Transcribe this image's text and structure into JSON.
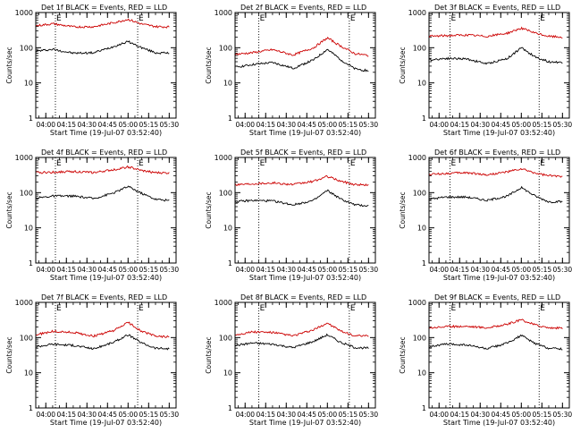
{
  "figure": {
    "ylabel": "Counts/sec",
    "xlabel_prefix": "Start Time",
    "start_time": "(19-Jul-07 03:52:40)",
    "xtick_labels": [
      "04:00",
      "04:15",
      "04:30",
      "04:45",
      "05:00",
      "05:15",
      "05:30"
    ],
    "ytick_labels": [
      "1",
      "10",
      "100",
      "1000"
    ],
    "colors": {
      "events": "#000000",
      "lld": "#cc0000"
    }
  },
  "chart_data": [
    {
      "type": "line",
      "title": "Det 1f BLACK = Events, RED = LLD",
      "marker_labels": [
        "E",
        "E"
      ],
      "markers_x": [
        "04:07",
        "05:07"
      ],
      "x_range": [
        "03:52:40",
        "05:35"
      ],
      "y_range": [
        1,
        1000
      ],
      "y_scale": "log",
      "series": [
        {
          "name": "Events",
          "color": "#000000",
          "x": [
            "03:53",
            "04:05",
            "04:20",
            "04:35",
            "04:50",
            "05:00",
            "05:10",
            "05:20",
            "05:30"
          ],
          "y": [
            80,
            90,
            70,
            72,
            110,
            150,
            100,
            72,
            70
          ]
        },
        {
          "name": "LLD",
          "color": "#cc0000",
          "x": [
            "03:53",
            "04:05",
            "04:20",
            "04:35",
            "04:50",
            "05:00",
            "05:10",
            "05:20",
            "05:30"
          ],
          "y": [
            420,
            480,
            390,
            395,
            520,
            640,
            470,
            400,
            390
          ]
        }
      ]
    },
    {
      "type": "line",
      "title": "Det 2f BLACK = Events, RED = LLD",
      "marker_labels": [
        "E",
        "E"
      ],
      "markers_x": [
        "04:10",
        "05:16"
      ],
      "x_range": [
        "03:52:40",
        "05:35"
      ],
      "y_range": [
        1,
        1000
      ],
      "y_scale": "log",
      "series": [
        {
          "name": "Events",
          "color": "#000000",
          "x": [
            "03:53",
            "04:05",
            "04:20",
            "04:35",
            "04:50",
            "05:00",
            "05:10",
            "05:20",
            "05:30"
          ],
          "y": [
            28,
            33,
            38,
            26,
            45,
            90,
            45,
            25,
            22
          ]
        },
        {
          "name": "LLD",
          "color": "#cc0000",
          "x": [
            "03:53",
            "04:05",
            "04:20",
            "04:35",
            "04:50",
            "05:00",
            "05:10",
            "05:20",
            "05:30"
          ],
          "y": [
            65,
            72,
            88,
            62,
            100,
            190,
            110,
            68,
            60
          ]
        }
      ]
    },
    {
      "type": "line",
      "title": "Det 3f BLACK = Events, RED = LLD",
      "marker_labels": [
        "E",
        "E"
      ],
      "markers_x": [
        "04:08",
        "05:13"
      ],
      "x_range": [
        "03:52:40",
        "05:35"
      ],
      "y_range": [
        1,
        1000
      ],
      "y_scale": "log",
      "series": [
        {
          "name": "Events",
          "color": "#000000",
          "x": [
            "03:53",
            "04:05",
            "04:20",
            "04:35",
            "04:50",
            "05:00",
            "05:10",
            "05:20",
            "05:30"
          ],
          "y": [
            45,
            50,
            48,
            35,
            50,
            100,
            55,
            40,
            38
          ]
        },
        {
          "name": "LLD",
          "color": "#cc0000",
          "x": [
            "03:53",
            "04:05",
            "04:20",
            "04:35",
            "04:50",
            "05:00",
            "05:10",
            "05:20",
            "05:30"
          ],
          "y": [
            210,
            220,
            230,
            210,
            260,
            360,
            260,
            210,
            200
          ]
        }
      ]
    },
    {
      "type": "line",
      "title": "Det 4f BLACK = Events, RED = LLD",
      "marker_labels": [
        "E",
        "E"
      ],
      "markers_x": [
        "04:07",
        "05:07"
      ],
      "x_range": [
        "03:52:40",
        "05:35"
      ],
      "y_range": [
        1,
        1000
      ],
      "y_scale": "log",
      "series": [
        {
          "name": "Events",
          "color": "#000000",
          "x": [
            "03:53",
            "04:05",
            "04:20",
            "04:35",
            "04:50",
            "05:00",
            "05:10",
            "05:20",
            "05:30"
          ],
          "y": [
            70,
            80,
            80,
            68,
            100,
            150,
            95,
            65,
            60
          ]
        },
        {
          "name": "LLD",
          "color": "#cc0000",
          "x": [
            "03:53",
            "04:05",
            "04:20",
            "04:35",
            "04:50",
            "05:00",
            "05:10",
            "05:20",
            "05:30"
          ],
          "y": [
            370,
            380,
            400,
            370,
            450,
            540,
            420,
            370,
            360
          ]
        }
      ]
    },
    {
      "type": "line",
      "title": "Det 5f BLACK = Events, RED = LLD",
      "marker_labels": [
        "E",
        "E"
      ],
      "markers_x": [
        "04:10",
        "05:16"
      ],
      "x_range": [
        "03:52:40",
        "05:35"
      ],
      "y_range": [
        1,
        1000
      ],
      "y_scale": "log",
      "series": [
        {
          "name": "Events",
          "color": "#000000",
          "x": [
            "03:53",
            "04:05",
            "04:20",
            "04:35",
            "04:50",
            "05:00",
            "05:10",
            "05:20",
            "05:30"
          ],
          "y": [
            55,
            60,
            58,
            45,
            60,
            115,
            65,
            45,
            42
          ]
        },
        {
          "name": "LLD",
          "color": "#cc0000",
          "x": [
            "03:53",
            "04:05",
            "04:20",
            "04:35",
            "04:50",
            "05:00",
            "05:10",
            "05:20",
            "05:30"
          ],
          "y": [
            170,
            180,
            190,
            170,
            210,
            290,
            210,
            170,
            165
          ]
        }
      ]
    },
    {
      "type": "line",
      "title": "Det 6f BLACK = Events, RED = LLD",
      "marker_labels": [
        "E",
        "E"
      ],
      "markers_x": [
        "04:08",
        "05:13"
      ],
      "x_range": [
        "03:52:40",
        "05:35"
      ],
      "y_range": [
        1,
        1000
      ],
      "y_scale": "log",
      "series": [
        {
          "name": "Events",
          "color": "#000000",
          "x": [
            "03:53",
            "04:05",
            "04:20",
            "04:35",
            "04:50",
            "05:00",
            "05:10",
            "05:20",
            "05:30"
          ],
          "y": [
            65,
            75,
            75,
            60,
            80,
            140,
            80,
            55,
            55
          ]
        },
        {
          "name": "LLD",
          "color": "#cc0000",
          "x": [
            "03:53",
            "04:05",
            "04:20",
            "04:35",
            "04:50",
            "05:00",
            "05:10",
            "05:20",
            "05:30"
          ],
          "y": [
            330,
            350,
            370,
            320,
            390,
            470,
            360,
            300,
            290
          ]
        }
      ]
    },
    {
      "type": "line",
      "title": "Det 7f BLACK = Events, RED = LLD",
      "marker_labels": [
        "E",
        "E"
      ],
      "markers_x": [
        "04:07",
        "05:07"
      ],
      "x_range": [
        "03:52:40",
        "05:35"
      ],
      "y_range": [
        1,
        1000
      ],
      "y_scale": "log",
      "series": [
        {
          "name": "Events",
          "color": "#000000",
          "x": [
            "03:53",
            "04:05",
            "04:20",
            "04:35",
            "04:50",
            "05:00",
            "05:10",
            "05:20",
            "05:30"
          ],
          "y": [
            55,
            65,
            60,
            48,
            75,
            120,
            70,
            50,
            48
          ]
        },
        {
          "name": "LLD",
          "color": "#cc0000",
          "x": [
            "03:53",
            "04:05",
            "04:20",
            "04:35",
            "04:50",
            "05:00",
            "05:10",
            "05:20",
            "05:30"
          ],
          "y": [
            120,
            150,
            140,
            110,
            160,
            270,
            150,
            110,
            105
          ]
        }
      ]
    },
    {
      "type": "line",
      "title": "Det 8f BLACK = Events, RED = LLD",
      "marker_labels": [
        "E",
        "E"
      ],
      "markers_x": [
        "04:10",
        "05:16"
      ],
      "x_range": [
        "03:52:40",
        "05:35"
      ],
      "y_range": [
        1,
        1000
      ],
      "y_scale": "log",
      "series": [
        {
          "name": "Events",
          "color": "#000000",
          "x": [
            "03:53",
            "04:05",
            "04:20",
            "04:35",
            "04:50",
            "05:00",
            "05:10",
            "05:20",
            "05:30"
          ],
          "y": [
            60,
            70,
            65,
            52,
            78,
            120,
            72,
            52,
            50
          ]
        },
        {
          "name": "LLD",
          "color": "#cc0000",
          "x": [
            "03:53",
            "04:05",
            "04:20",
            "04:35",
            "04:50",
            "05:00",
            "05:10",
            "05:20",
            "05:30"
          ],
          "y": [
            120,
            145,
            140,
            112,
            165,
            260,
            150,
            112,
            110
          ]
        }
      ]
    },
    {
      "type": "line",
      "title": "Det 9f BLACK = Events, RED = LLD",
      "marker_labels": [
        "E",
        "E"
      ],
      "markers_x": [
        "04:08",
        "05:13"
      ],
      "x_range": [
        "03:52:40",
        "05:35"
      ],
      "y_range": [
        1,
        1000
      ],
      "y_scale": "log",
      "series": [
        {
          "name": "Events",
          "color": "#000000",
          "x": [
            "03:53",
            "04:05",
            "04:20",
            "04:35",
            "04:50",
            "05:00",
            "05:10",
            "05:20",
            "05:30"
          ],
          "y": [
            55,
            65,
            62,
            48,
            70,
            115,
            68,
            50,
            48
          ]
        },
        {
          "name": "LLD",
          "color": "#cc0000",
          "x": [
            "03:53",
            "04:05",
            "04:20",
            "04:35",
            "04:50",
            "05:00",
            "05:10",
            "05:20",
            "05:30"
          ],
          "y": [
            190,
            205,
            210,
            190,
            240,
            320,
            230,
            190,
            185
          ]
        }
      ]
    }
  ]
}
